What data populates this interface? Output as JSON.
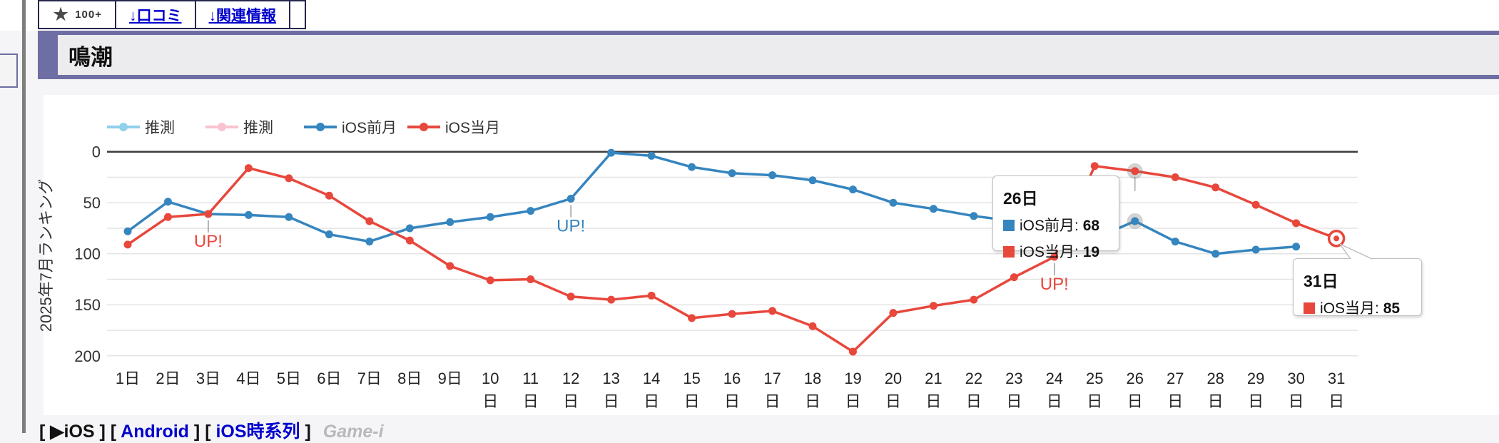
{
  "tabs": {
    "star_count": "100+",
    "items": [
      {
        "label": "↓口コミ"
      },
      {
        "label": "↓関連情報"
      }
    ]
  },
  "header": {
    "title": "鳴潮"
  },
  "chart_data": {
    "type": "line",
    "title": "",
    "xlabel": "",
    "ylabel": "2025年7月ランキング",
    "y_axis_inverted": true,
    "ylim": [
      0,
      200
    ],
    "y_ticks": [
      0,
      50,
      100,
      150,
      200
    ],
    "y_grid_step": 25,
    "grid": true,
    "legend_position": "top-left",
    "days": [
      1,
      2,
      3,
      4,
      5,
      6,
      7,
      8,
      9,
      10,
      11,
      12,
      13,
      14,
      15,
      16,
      17,
      18,
      19,
      20,
      21,
      22,
      23,
      24,
      25,
      26,
      27,
      28,
      29,
      30,
      31
    ],
    "x_suffix": "日",
    "series": [
      {
        "name": "推測",
        "color": "#8fd0eb",
        "values": []
      },
      {
        "name": "推測",
        "color": "#f8c3d0",
        "values": []
      },
      {
        "name": "iOS前月",
        "color": "#3585bf",
        "values": [
          78,
          49,
          61,
          62,
          64,
          81,
          88,
          75,
          69,
          64,
          58,
          46,
          1,
          4,
          15,
          21,
          23,
          28,
          37,
          50,
          56,
          63,
          68,
          77,
          85,
          68,
          88,
          100,
          96,
          93
        ]
      },
      {
        "name": "iOS当月",
        "color": "#e8473c",
        "values": [
          91,
          64,
          61,
          16,
          26,
          43,
          68,
          87,
          112,
          126,
          125,
          142,
          145,
          141,
          163,
          159,
          156,
          171,
          196,
          158,
          151,
          145,
          123,
          103,
          14,
          19,
          25,
          35,
          52,
          70,
          85
        ]
      }
    ],
    "annotations": [
      {
        "series_index": 3,
        "day": 3,
        "label": "UP!"
      },
      {
        "series_index": 2,
        "day": 12,
        "label": "UP!"
      },
      {
        "series_index": 3,
        "day": 24,
        "label": "UP!"
      }
    ],
    "highlighted_points": [
      {
        "series_index": 2,
        "day": 26
      },
      {
        "series_index": 3,
        "day": 26
      }
    ],
    "selected_point": {
      "series_index": 3,
      "day": 31
    }
  },
  "tooltips": {
    "t26": {
      "title": "26日",
      "rows": [
        {
          "label": "iOS前月",
          "value": "68",
          "color": "#3585bf"
        },
        {
          "label": "iOS当月",
          "value": "19",
          "color": "#e8473c"
        }
      ]
    },
    "t31": {
      "title": "31日",
      "rows": [
        {
          "label": "iOS当月",
          "value": "85",
          "color": "#e8473c"
        }
      ]
    }
  },
  "footer": {
    "groups": [
      {
        "label": "▶iOS",
        "link": false
      },
      {
        "label": "Android",
        "link": true
      },
      {
        "label": "iOS時系列",
        "link": true
      }
    ],
    "brand": "Game-i"
  }
}
